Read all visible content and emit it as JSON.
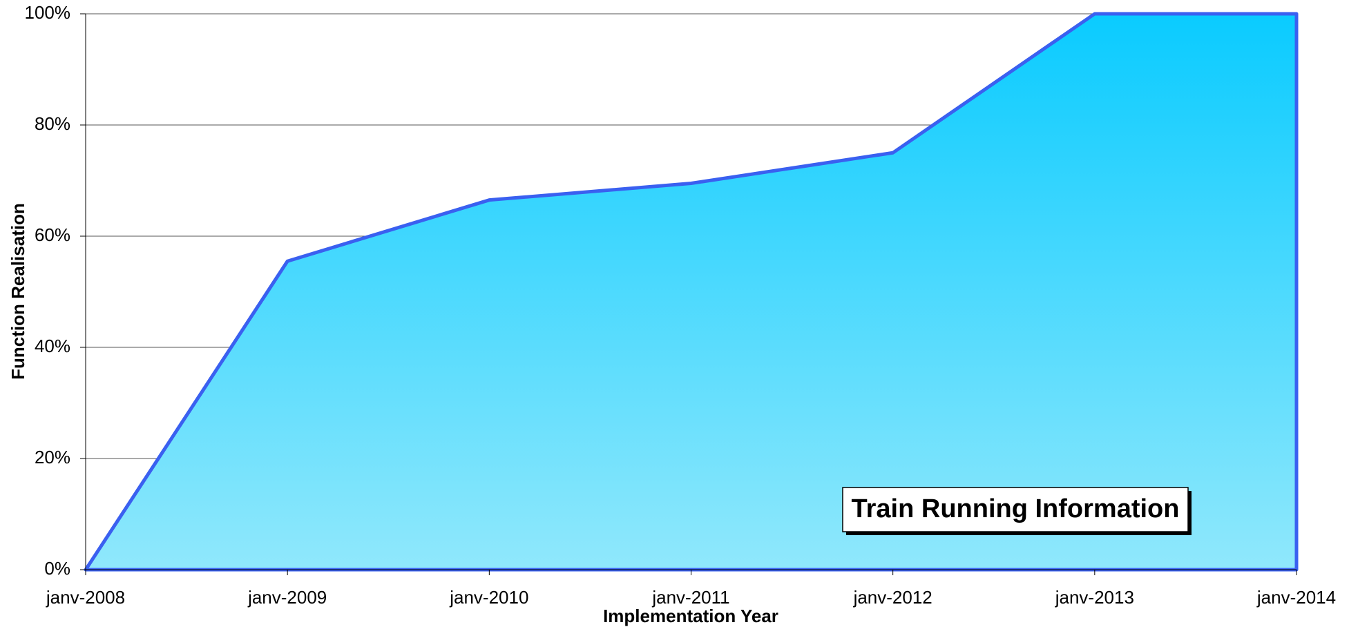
{
  "chart_data": {
    "type": "area",
    "annotation": "Train Running Information",
    "xlabel": "Implementation Year",
    "ylabel": "Function Realisation",
    "categories": [
      "janv-2008",
      "janv-2009",
      "janv-2010",
      "janv-2011",
      "janv-2012",
      "janv-2013",
      "janv-2014"
    ],
    "values": [
      0,
      55.5,
      66.5,
      69.5,
      75,
      100,
      100
    ],
    "color": "#3a60f0",
    "fill_top": "#0acbff",
    "fill_bottom": "#90e8fc",
    "ylim": [
      0,
      100
    ],
    "yticks": [
      {
        "value": 0,
        "label": "0%"
      },
      {
        "value": 20,
        "label": "20%"
      },
      {
        "value": 40,
        "label": "40%"
      },
      {
        "value": 60,
        "label": "60%"
      },
      {
        "value": 80,
        "label": "80%"
      },
      {
        "value": 100,
        "label": "100%"
      }
    ],
    "grid": true
  }
}
